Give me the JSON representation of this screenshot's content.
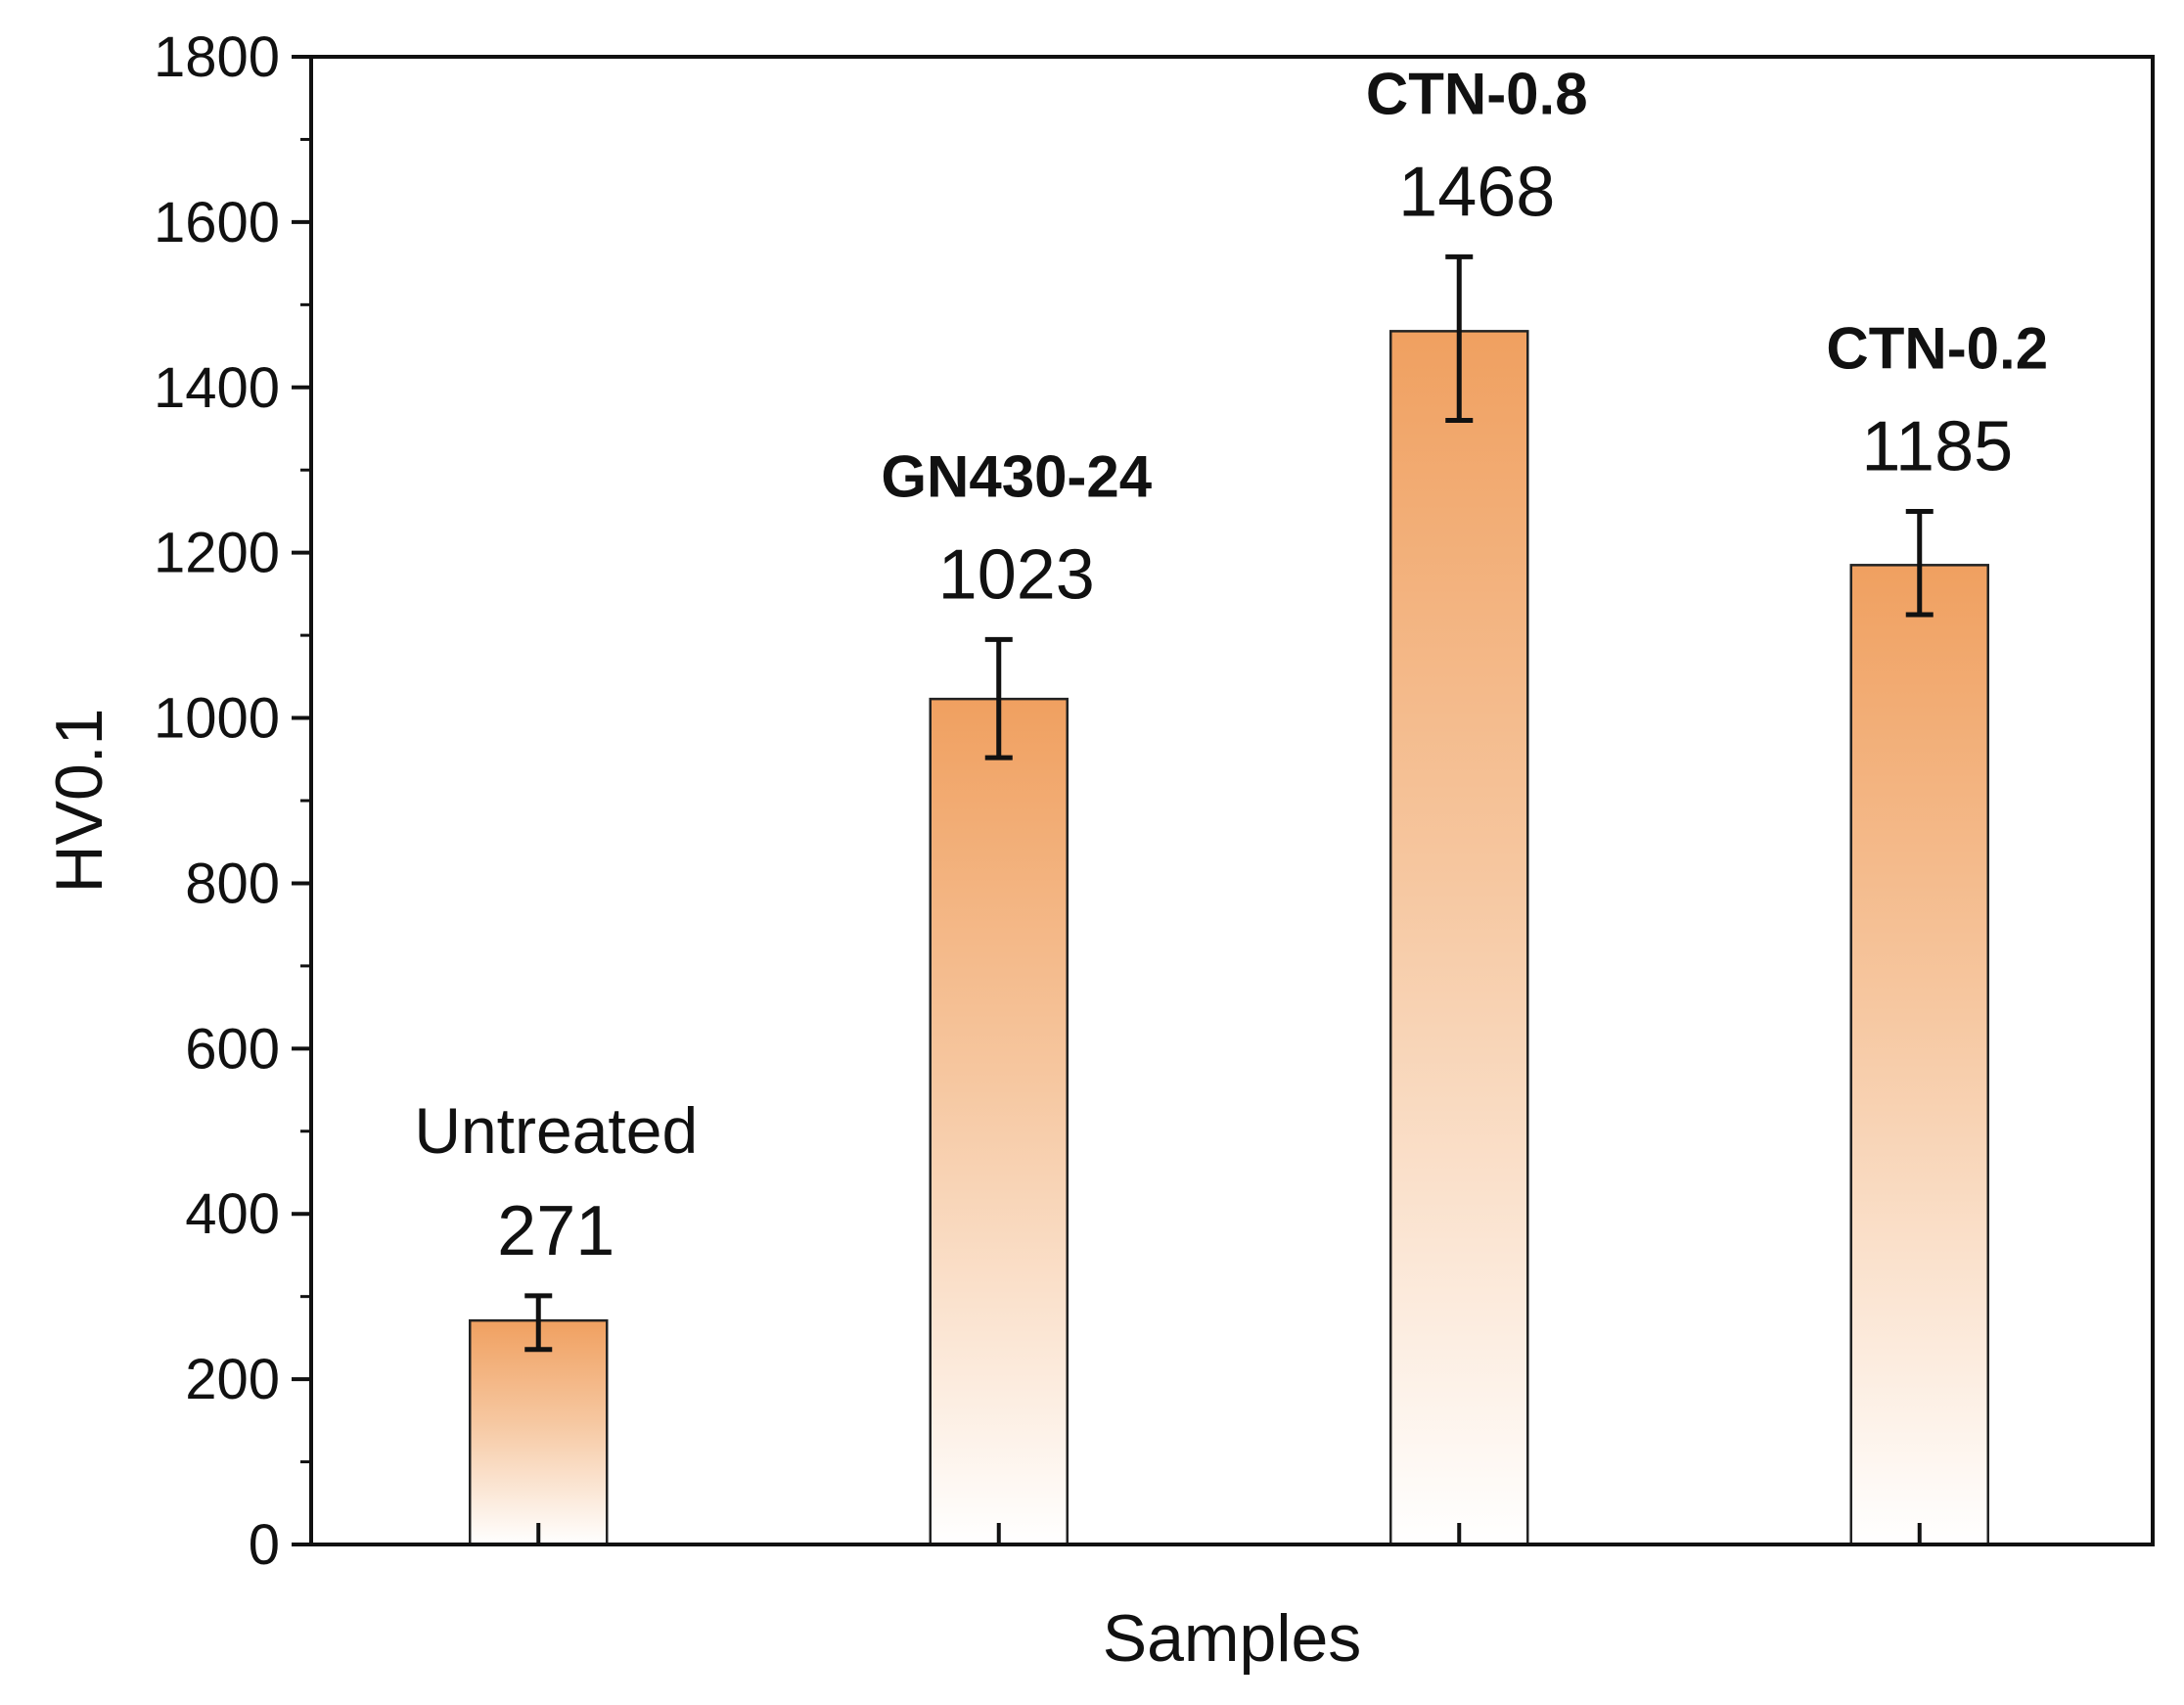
{
  "chart_data": {
    "type": "bar",
    "title": "",
    "xlabel": "Samples",
    "ylabel": "HV0.1",
    "ylim": [
      0,
      1800
    ],
    "yticks": [
      0,
      200,
      400,
      600,
      800,
      1000,
      1200,
      1400,
      1600,
      1800
    ],
    "ytick_labels": [
      "0",
      "200",
      "400",
      "600",
      "800",
      "1000",
      "1200",
      "1400",
      "1600",
      "1800"
    ],
    "minor_ticks": true,
    "grid": false,
    "legend": "none",
    "categories": [
      "Untreated",
      "GN430-24",
      "CTN-0.8",
      "CTN-0.2"
    ],
    "category_label_bold": [
      false,
      true,
      true,
      true
    ],
    "values": [
      271,
      1023,
      1468,
      1185
    ],
    "value_labels": [
      "271",
      "1023",
      "1468",
      "1185"
    ],
    "error_bars": [
      {
        "low": 236,
        "high": 301
      },
      {
        "low": 952,
        "high": 1095
      },
      {
        "low": 1360,
        "high": 1558
      },
      {
        "low": 1125,
        "high": 1250
      }
    ],
    "bar_fill_top": "#f0a060",
    "bar_fill_bottom": "#ffffff",
    "bar_edge_color": "#222222",
    "axis_color": "#111111"
  }
}
